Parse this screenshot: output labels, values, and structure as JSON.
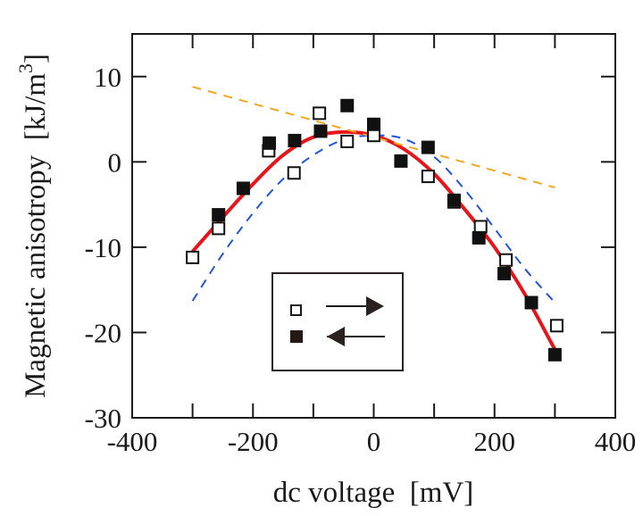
{
  "chart_data": {
    "type": "scatter",
    "xlabel": "dc voltage  [mV]",
    "ylabel": "Magnetic anisotropy  [kJ/m",
    "ylabel_superscript": "3",
    "ylabel_suffix": "]",
    "xlim": [
      -400,
      400
    ],
    "ylim": [
      -30,
      15
    ],
    "xticks": [
      -400,
      -200,
      0,
      200,
      400
    ],
    "yticks": [
      -30,
      -20,
      -10,
      0,
      10
    ],
    "x_tick_labels": [
      "-400",
      "-200",
      "0",
      "200",
      "400"
    ],
    "y_tick_labels": [
      "-30",
      "-20",
      "-10",
      "0",
      "10"
    ],
    "grid": false,
    "legend": {
      "placement": "center-bottom",
      "entries": [
        {
          "marker": "open-square",
          "symbol": "right-arrow"
        },
        {
          "marker": "filled-square",
          "symbol": "left-arrow"
        }
      ]
    },
    "series": [
      {
        "marker": "open-square",
        "x": [
          -300,
          -257,
          -174,
          -132,
          -90,
          -44,
          0,
          90,
          133,
          177,
          219,
          303
        ],
        "y": [
          -11.2,
          -7.8,
          1.3,
          -1.3,
          5.7,
          2.4,
          3.1,
          -1.7,
          -4.7,
          -7.6,
          -11.5,
          -19.2
        ]
      },
      {
        "marker": "filled-square",
        "x": [
          -257,
          -216,
          -173,
          -131,
          -88,
          -44,
          0,
          45,
          90,
          133,
          174,
          216,
          261,
          300
        ],
        "y": [
          -6.2,
          -3.1,
          2.2,
          2.5,
          3.6,
          6.6,
          4.4,
          0.1,
          1.7,
          -4.5,
          -8.9,
          -13.1,
          -16.5,
          -22.6
        ]
      },
      {
        "type": "line",
        "style": "solid",
        "color": "#e8141a",
        "x": [
          -300,
          -250,
          -200,
          -150,
          -100,
          -50,
          0,
          50,
          100,
          150,
          200,
          250,
          300
        ],
        "y": [
          -10.5,
          -6.5,
          -2.6,
          0.8,
          2.9,
          3.5,
          3.1,
          1.5,
          -1.4,
          -5.5,
          -10.0,
          -15.5,
          -22.0
        ]
      },
      {
        "type": "line",
        "style": "dashed",
        "color": "#2255dd",
        "x": [
          -300,
          -250,
          -200,
          -150,
          -100,
          -50,
          0,
          50,
          100,
          150,
          200,
          250,
          300
        ],
        "y": [
          -16.3,
          -10.8,
          -6.0,
          -2.0,
          0.8,
          2.6,
          3.1,
          2.7,
          0.6,
          -3.2,
          -7.8,
          -12.5,
          -16.5
        ]
      },
      {
        "type": "line",
        "style": "dashed",
        "color": "#f5a623",
        "x": [
          -300,
          300
        ],
        "y": [
          8.8,
          -3.0
        ]
      }
    ]
  }
}
